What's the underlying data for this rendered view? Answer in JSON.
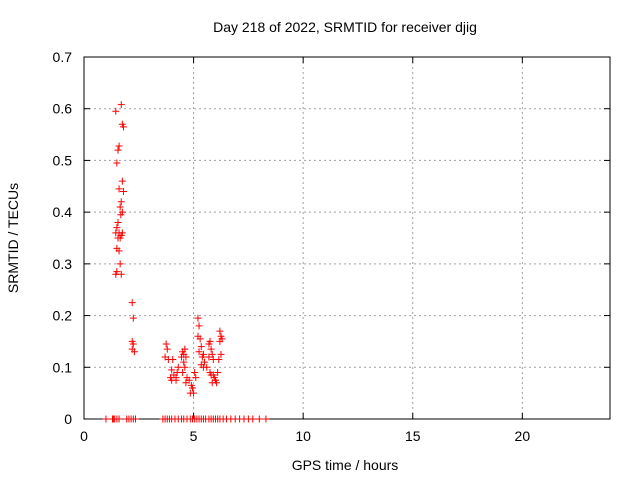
{
  "chart_data": {
    "type": "scatter",
    "title": "Day 218 of 2022, SRMTID for receiver djig",
    "xlabel": "GPS time / hours",
    "ylabel": "SRMTID / TECUs",
    "xlim": [
      0,
      24
    ],
    "ylim": [
      0,
      0.7
    ],
    "xticks": [
      0,
      5,
      10,
      15,
      20
    ],
    "yticks": [
      0,
      0.1,
      0.2,
      0.3,
      0.4,
      0.5,
      0.6,
      0.7
    ],
    "xtick_labels": [
      "0",
      "5",
      "10",
      "15",
      "20"
    ],
    "ytick_labels": [
      "0",
      "0.1",
      "0.2",
      "0.3",
      "0.4",
      "0.5",
      "0.6",
      "0.7"
    ],
    "grid": true,
    "marker": "+",
    "color": "#ff0000",
    "series": [
      {
        "name": "SRMTID",
        "points": [
          [
            1.45,
            0.595
          ],
          [
            1.7,
            0.608
          ],
          [
            1.6,
            0.528
          ],
          [
            1.55,
            0.52
          ],
          [
            1.75,
            0.57
          ],
          [
            1.8,
            0.565
          ],
          [
            1.5,
            0.495
          ],
          [
            1.75,
            0.46
          ],
          [
            1.6,
            0.445
          ],
          [
            1.8,
            0.44
          ],
          [
            1.7,
            0.42
          ],
          [
            1.65,
            0.41
          ],
          [
            1.75,
            0.4
          ],
          [
            1.68,
            0.395
          ],
          [
            1.55,
            0.38
          ],
          [
            1.5,
            0.37
          ],
          [
            1.45,
            0.36
          ],
          [
            1.6,
            0.36
          ],
          [
            1.7,
            0.355
          ],
          [
            1.75,
            0.36
          ],
          [
            1.55,
            0.35
          ],
          [
            1.65,
            0.35
          ],
          [
            1.5,
            0.33
          ],
          [
            1.6,
            0.325
          ],
          [
            1.65,
            0.3
          ],
          [
            1.5,
            0.285
          ],
          [
            1.45,
            0.28
          ],
          [
            1.7,
            0.28
          ],
          [
            2.2,
            0.225
          ],
          [
            2.25,
            0.195
          ],
          [
            2.2,
            0.15
          ],
          [
            2.25,
            0.145
          ],
          [
            2.2,
            0.135
          ],
          [
            2.3,
            0.13
          ],
          [
            3.75,
            0.145
          ],
          [
            3.8,
            0.135
          ],
          [
            3.7,
            0.12
          ],
          [
            3.85,
            0.115
          ],
          [
            4.05,
            0.115
          ],
          [
            4.0,
            0.095
          ],
          [
            4.1,
            0.085
          ],
          [
            3.95,
            0.08
          ],
          [
            4.2,
            0.08
          ],
          [
            4.0,
            0.075
          ],
          [
            4.3,
            0.1
          ],
          [
            4.25,
            0.09
          ],
          [
            4.2,
            0.075
          ],
          [
            4.5,
            0.13
          ],
          [
            4.55,
            0.125
          ],
          [
            4.45,
            0.12
          ],
          [
            4.6,
            0.135
          ],
          [
            4.65,
            0.12
          ],
          [
            4.55,
            0.11
          ],
          [
            4.6,
            0.1
          ],
          [
            4.5,
            0.09
          ],
          [
            4.7,
            0.08
          ],
          [
            4.8,
            0.075
          ],
          [
            4.65,
            0.07
          ],
          [
            4.9,
            0.065
          ],
          [
            4.95,
            0.06
          ],
          [
            4.85,
            0.05
          ],
          [
            5.0,
            0.05
          ],
          [
            5.1,
            0.08
          ],
          [
            5.05,
            0.09
          ],
          [
            5.2,
            0.195
          ],
          [
            5.25,
            0.18
          ],
          [
            5.2,
            0.16
          ],
          [
            5.3,
            0.155
          ],
          [
            5.35,
            0.14
          ],
          [
            5.25,
            0.13
          ],
          [
            5.45,
            0.125
          ],
          [
            5.4,
            0.12
          ],
          [
            5.5,
            0.11
          ],
          [
            5.35,
            0.105
          ],
          [
            5.6,
            0.1
          ],
          [
            5.45,
            0.1
          ],
          [
            5.7,
            0.145
          ],
          [
            5.75,
            0.15
          ],
          [
            5.8,
            0.135
          ],
          [
            5.85,
            0.125
          ],
          [
            5.7,
            0.12
          ],
          [
            5.9,
            0.115
          ],
          [
            5.75,
            0.09
          ],
          [
            5.8,
            0.085
          ],
          [
            5.9,
            0.085
          ],
          [
            5.95,
            0.08
          ],
          [
            6.0,
            0.075
          ],
          [
            5.85,
            0.07
          ],
          [
            6.05,
            0.07
          ],
          [
            6.1,
            0.09
          ],
          [
            6.2,
            0.17
          ],
          [
            6.25,
            0.16
          ],
          [
            6.3,
            0.155
          ],
          [
            6.2,
            0.15
          ],
          [
            6.25,
            0.125
          ],
          [
            6.15,
            0.115
          ],
          [
            1.0,
            0
          ],
          [
            1.3,
            0
          ],
          [
            1.35,
            0
          ],
          [
            1.4,
            0
          ],
          [
            1.5,
            0
          ],
          [
            1.6,
            0
          ],
          [
            1.95,
            0
          ],
          [
            2.05,
            0
          ],
          [
            2.15,
            0
          ],
          [
            2.25,
            0
          ],
          [
            2.35,
            0
          ],
          [
            3.6,
            0
          ],
          [
            3.7,
            0
          ],
          [
            3.8,
            0
          ],
          [
            3.9,
            0
          ],
          [
            4.0,
            0
          ],
          [
            4.15,
            0
          ],
          [
            4.3,
            0
          ],
          [
            4.45,
            0
          ],
          [
            4.55,
            0
          ],
          [
            4.7,
            0
          ],
          [
            4.85,
            0
          ],
          [
            4.95,
            0
          ],
          [
            5.05,
            0
          ],
          [
            5.15,
            0
          ],
          [
            5.25,
            0
          ],
          [
            5.35,
            0
          ],
          [
            5.45,
            0
          ],
          [
            5.55,
            0
          ],
          [
            5.7,
            0
          ],
          [
            5.8,
            0
          ],
          [
            5.9,
            0
          ],
          [
            6.0,
            0
          ],
          [
            6.1,
            0
          ],
          [
            6.2,
            0
          ],
          [
            6.35,
            0
          ],
          [
            6.5,
            0
          ],
          [
            6.7,
            0
          ],
          [
            6.9,
            0
          ],
          [
            7.1,
            0
          ],
          [
            7.3,
            0
          ],
          [
            7.5,
            0
          ],
          [
            7.7,
            0
          ],
          [
            8.0,
            0
          ],
          [
            8.3,
            0
          ]
        ]
      }
    ]
  }
}
